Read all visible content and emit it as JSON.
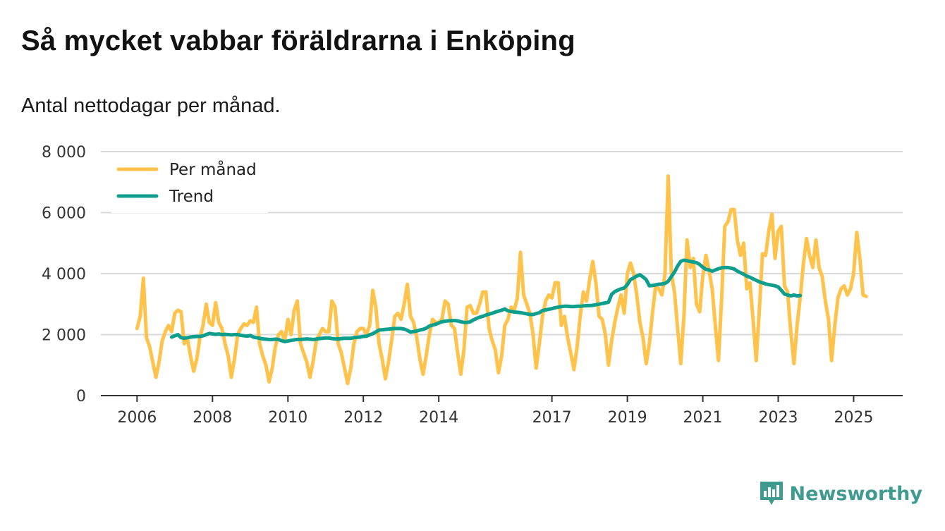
{
  "title": "Så mycket vabbar föräldrarna i Enköping",
  "subtitle": "Antal nettodagar per månad.",
  "brand": "Newsworthy",
  "colors": {
    "monthly": "#ffc24a",
    "trend": "#0e9e8c",
    "grid": "#d9d9d9",
    "axis": "#333333",
    "brand": "#3f9a90"
  },
  "chart_data": {
    "type": "line",
    "ylim": [
      0,
      8000
    ],
    "yticks": [
      0,
      2000,
      4000,
      6000,
      8000
    ],
    "ytick_labels": [
      "0",
      "2 000",
      "4 000",
      "6 000",
      "8 000"
    ],
    "xlim": [
      2005.04,
      2026.3
    ],
    "xticks": [
      2006,
      2008,
      2010,
      2012,
      2014,
      2017,
      2019,
      2021,
      2023,
      2025
    ],
    "xtick_labels": [
      "2006",
      "2008",
      "2010",
      "2012",
      "2014",
      "2017",
      "2019",
      "2021",
      "2023",
      "2025"
    ],
    "legend_position": "top-left",
    "series": [
      {
        "name": "Per månad",
        "start": 2006.0,
        "step": 0.08333,
        "values": [
          2200,
          2600,
          3850,
          1900,
          1600,
          1100,
          600,
          1100,
          1800,
          2100,
          2300,
          2100,
          2700,
          2800,
          2750,
          1700,
          1900,
          1300,
          800,
          1200,
          1900,
          2300,
          3000,
          2400,
          2300,
          3050,
          2400,
          2200,
          1700,
          1300,
          600,
          1200,
          2000,
          2200,
          2350,
          2300,
          2450,
          2400,
          2900,
          1700,
          1300,
          1000,
          450,
          900,
          1600,
          2000,
          2100,
          1800,
          2500,
          2000,
          2800,
          3100,
          1700,
          1400,
          1100,
          600,
          1100,
          1800,
          2000,
          2200,
          2100,
          2100,
          3100,
          2900,
          1700,
          1400,
          900,
          400,
          900,
          1700,
          2100,
          2200,
          2200,
          2000,
          2300,
          3450,
          2900,
          1700,
          1200,
          550,
          1100,
          1800,
          2600,
          2700,
          2500,
          3000,
          3650,
          2600,
          2400,
          1900,
          1200,
          700,
          1300,
          2000,
          2500,
          2400,
          2400,
          2500,
          3100,
          3000,
          2300,
          2200,
          1400,
          700,
          1500,
          2900,
          2950,
          2700,
          2700,
          3000,
          3400,
          3400,
          2200,
          1800,
          1500,
          750,
          1300,
          2300,
          2500,
          2900,
          2800,
          3200,
          4700,
          3300,
          3000,
          2700,
          2000,
          900,
          1700,
          2600,
          3100,
          3300,
          3200,
          3700,
          3700,
          2300,
          2600,
          1900,
          1400,
          850,
          1600,
          2600,
          3400,
          3100,
          3800,
          4400,
          3700,
          2600,
          2500,
          2000,
          1000,
          1800,
          2400,
          2900,
          3300,
          2700,
          4000,
          4350,
          4000,
          3300,
          2400,
          1900,
          1050,
          1700,
          2700,
          3600,
          3500,
          3300,
          4000,
          7200,
          4000,
          3400,
          2200,
          1050,
          2600,
          5100,
          4200,
          4500,
          3000,
          2750,
          3900,
          4600,
          4100,
          3500,
          2300,
          1150,
          3200,
          5550,
          5700,
          6100,
          6100,
          5100,
          4600,
          5000,
          3500,
          3700,
          2500,
          1150,
          2800,
          4650,
          4600,
          5400,
          5950,
          4500,
          5400,
          5550,
          3600,
          3400,
          2100,
          1050,
          2300,
          3200,
          4300,
          5150,
          4600,
          4200,
          5100,
          4200,
          3900,
          3100,
          2500,
          1150,
          2300,
          3200,
          3500,
          3600,
          3300,
          3500,
          4000,
          5350,
          4500,
          3300,
          3250
        ],
        "color": "#ffc24a"
      },
      {
        "name": "Trend",
        "start": 2006.917,
        "step": 0.08333,
        "values": [
          1920,
          1960,
          2000,
          1900,
          1880,
          1900,
          1920,
          1930,
          1940,
          1940,
          1960,
          2000,
          2040,
          2020,
          2010,
          2020,
          2000,
          2010,
          2000,
          1990,
          2000,
          2000,
          1980,
          1960,
          1950,
          1970,
          1920,
          1900,
          1880,
          1860,
          1850,
          1840,
          1840,
          1850,
          1840,
          1800,
          1770,
          1790,
          1810,
          1830,
          1840,
          1840,
          1850,
          1860,
          1850,
          1840,
          1850,
          1870,
          1880,
          1890,
          1890,
          1870,
          1860,
          1860,
          1870,
          1880,
          1880,
          1880,
          1900,
          1910,
          1920,
          1940,
          1950,
          1990,
          2030,
          2090,
          2150,
          2160,
          2170,
          2180,
          2190,
          2200,
          2200,
          2200,
          2180,
          2140,
          2080,
          2100,
          2120,
          2150,
          2170,
          2210,
          2280,
          2310,
          2340,
          2380,
          2420,
          2440,
          2450,
          2460,
          2460,
          2450,
          2420,
          2400,
          2400,
          2420,
          2480,
          2530,
          2570,
          2600,
          2640,
          2670,
          2700,
          2740,
          2770,
          2800,
          2840,
          2780,
          2760,
          2740,
          2730,
          2720,
          2700,
          2680,
          2660,
          2660,
          2690,
          2720,
          2790,
          2810,
          2830,
          2850,
          2880,
          2900,
          2920,
          2930,
          2930,
          2920,
          2920,
          2930,
          2930,
          2940,
          2950,
          2950,
          2960,
          2980,
          3000,
          3020,
          3040,
          3060,
          3320,
          3410,
          3460,
          3500,
          3530,
          3640,
          3800,
          3860,
          3920,
          3960,
          3890,
          3800,
          3600,
          3610,
          3630,
          3650,
          3660,
          3680,
          3750,
          3900,
          4050,
          4250,
          4400,
          4440,
          4420,
          4400,
          4380,
          4360,
          4300,
          4210,
          4140,
          4120,
          4080,
          4120,
          4160,
          4190,
          4200,
          4200,
          4180,
          4150,
          4080,
          4030,
          3980,
          3920,
          3880,
          3830,
          3780,
          3730,
          3700,
          3660,
          3640,
          3620,
          3600,
          3560,
          3450,
          3330,
          3300,
          3270,
          3300,
          3270,
          3280
        ],
        "color": "#0e9e8c"
      }
    ]
  }
}
